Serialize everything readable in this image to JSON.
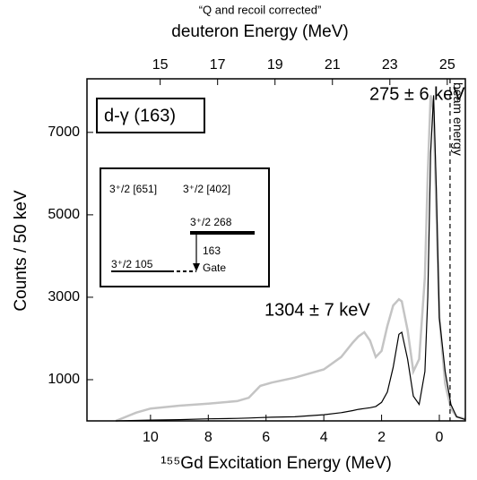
{
  "chart_data": {
    "type": "line",
    "subtitle": "“Q and recoil corrected”",
    "x2label": "deuteron Energy (MeV)",
    "xlabel": "¹⁵⁵Gd Excitation Energy (MeV)",
    "ylabel": "Counts / 50 keV",
    "xlim": [
      12.2,
      -0.9
    ],
    "xticks": [
      10,
      8,
      6,
      4,
      2,
      0
    ],
    "x2lim": [
      12.45,
      25.63
    ],
    "x2ticks": [
      15,
      17,
      19,
      21,
      23,
      25
    ],
    "ylim": [
      0,
      8300
    ],
    "yticks": [
      1000,
      3000,
      5000,
      7000
    ],
    "series": [
      {
        "color": "#c4c4c4",
        "x": [
          11.2,
          10.5,
          10,
          9,
          8,
          7,
          6.6,
          6.2,
          5.8,
          5,
          4,
          3.4,
          3,
          2.8,
          2.6,
          2.4,
          2.2,
          2.0,
          1.8,
          1.6,
          1.4,
          1.3,
          1.1,
          0.9,
          0.7,
          0.5,
          0.4,
          0.3,
          0.2,
          0.1,
          0,
          -0.2,
          -0.4,
          -0.6,
          -0.9
        ],
        "values": [
          0,
          200,
          300,
          370,
          420,
          480,
          560,
          850,
          930,
          1050,
          1250,
          1550,
          1900,
          2050,
          2150,
          1950,
          1550,
          1700,
          2300,
          2800,
          2950,
          2900,
          2200,
          1200,
          1500,
          3500,
          6000,
          7900,
          7500,
          5000,
          2500,
          900,
          300,
          100,
          50
        ]
      },
      {
        "color": "#000000",
        "x": [
          11.2,
          10.5,
          10,
          9,
          8,
          7,
          6.6,
          6.2,
          5.8,
          5,
          4,
          3.4,
          3,
          2.8,
          2.6,
          2.4,
          2.2,
          2.0,
          1.8,
          1.6,
          1.4,
          1.3,
          1.1,
          0.9,
          0.7,
          0.5,
          0.4,
          0.3,
          0.2,
          0.1,
          0,
          -0.2,
          -0.4,
          -0.6,
          -0.9
        ],
        "values": [
          0,
          10,
          20,
          30,
          50,
          60,
          70,
          80,
          90,
          100,
          150,
          200,
          250,
          280,
          300,
          320,
          350,
          450,
          700,
          1300,
          2100,
          2150,
          1500,
          600,
          400,
          1200,
          3000,
          6500,
          7900,
          5500,
          2500,
          1200,
          400,
          100,
          30
        ]
      }
    ],
    "beam_line": {
      "x": -0.37,
      "label": "beam energy"
    },
    "annotations": [
      "275 ± 6 keV",
      "1304 ± 7 keV",
      "d-γ (163)"
    ],
    "inset": {
      "band1": "3⁺/2 [651]",
      "band2": "3⁺/2 [402]",
      "level_upper": "3⁺/2   268",
      "transition": "163",
      "gate": "Gate",
      "level_lower": "3⁺/2   105"
    }
  }
}
